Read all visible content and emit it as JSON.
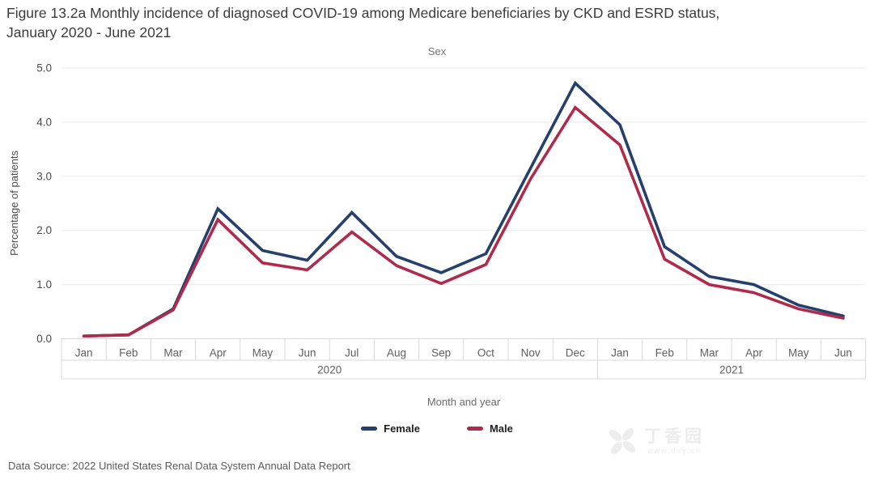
{
  "header": {
    "title": "Figure 13.2a Monthly incidence of diagnosed COVID-19 among Medicare beneficiaries by CKD and ESRD status, January 2020 - June 2021"
  },
  "chart_data": {
    "type": "line",
    "title": "Sex",
    "xlabel": "Month and year",
    "ylabel": "Percentage of patients",
    "ylim": [
      0,
      5
    ],
    "yticks": [
      "0.0",
      "1.0",
      "2.0",
      "3.0",
      "4.0",
      "5.0"
    ],
    "grid": true,
    "legend_position": "bottom",
    "categories": [
      "Jan",
      "Feb",
      "Mar",
      "Apr",
      "May",
      "Jun",
      "Jul",
      "Aug",
      "Sep",
      "Oct",
      "Nov",
      "Dec",
      "Jan",
      "Feb",
      "Mar",
      "Apr",
      "May",
      "Jun"
    ],
    "year_bands": [
      {
        "label": "2020",
        "span": 12
      },
      {
        "label": "2021",
        "span": 6
      }
    ],
    "series": [
      {
        "name": "Female",
        "color": "#24406b",
        "values": [
          0.05,
          0.07,
          0.55,
          2.4,
          1.63,
          1.45,
          2.33,
          1.52,
          1.22,
          1.57,
          3.15,
          4.72,
          3.95,
          1.7,
          1.15,
          1.0,
          0.62,
          0.42
        ]
      },
      {
        "name": "Male",
        "color": "#b02a4c",
        "values": [
          0.05,
          0.07,
          0.53,
          2.2,
          1.4,
          1.27,
          1.97,
          1.35,
          1.02,
          1.37,
          2.95,
          4.27,
          3.58,
          1.47,
          1.0,
          0.85,
          0.55,
          0.38
        ]
      }
    ]
  },
  "colors": {
    "gridline": "#e9e9e9",
    "axis_band_border": "#d8d8d8",
    "tick_label": "#4a4a4a",
    "month_label": "#5f5f5f"
  },
  "footer": {
    "source": "Data Source: 2022 United States Renal Data System Annual Data Report"
  },
  "watermark": {
    "brand": "丁香园",
    "url": "www.dxy.cn"
  }
}
